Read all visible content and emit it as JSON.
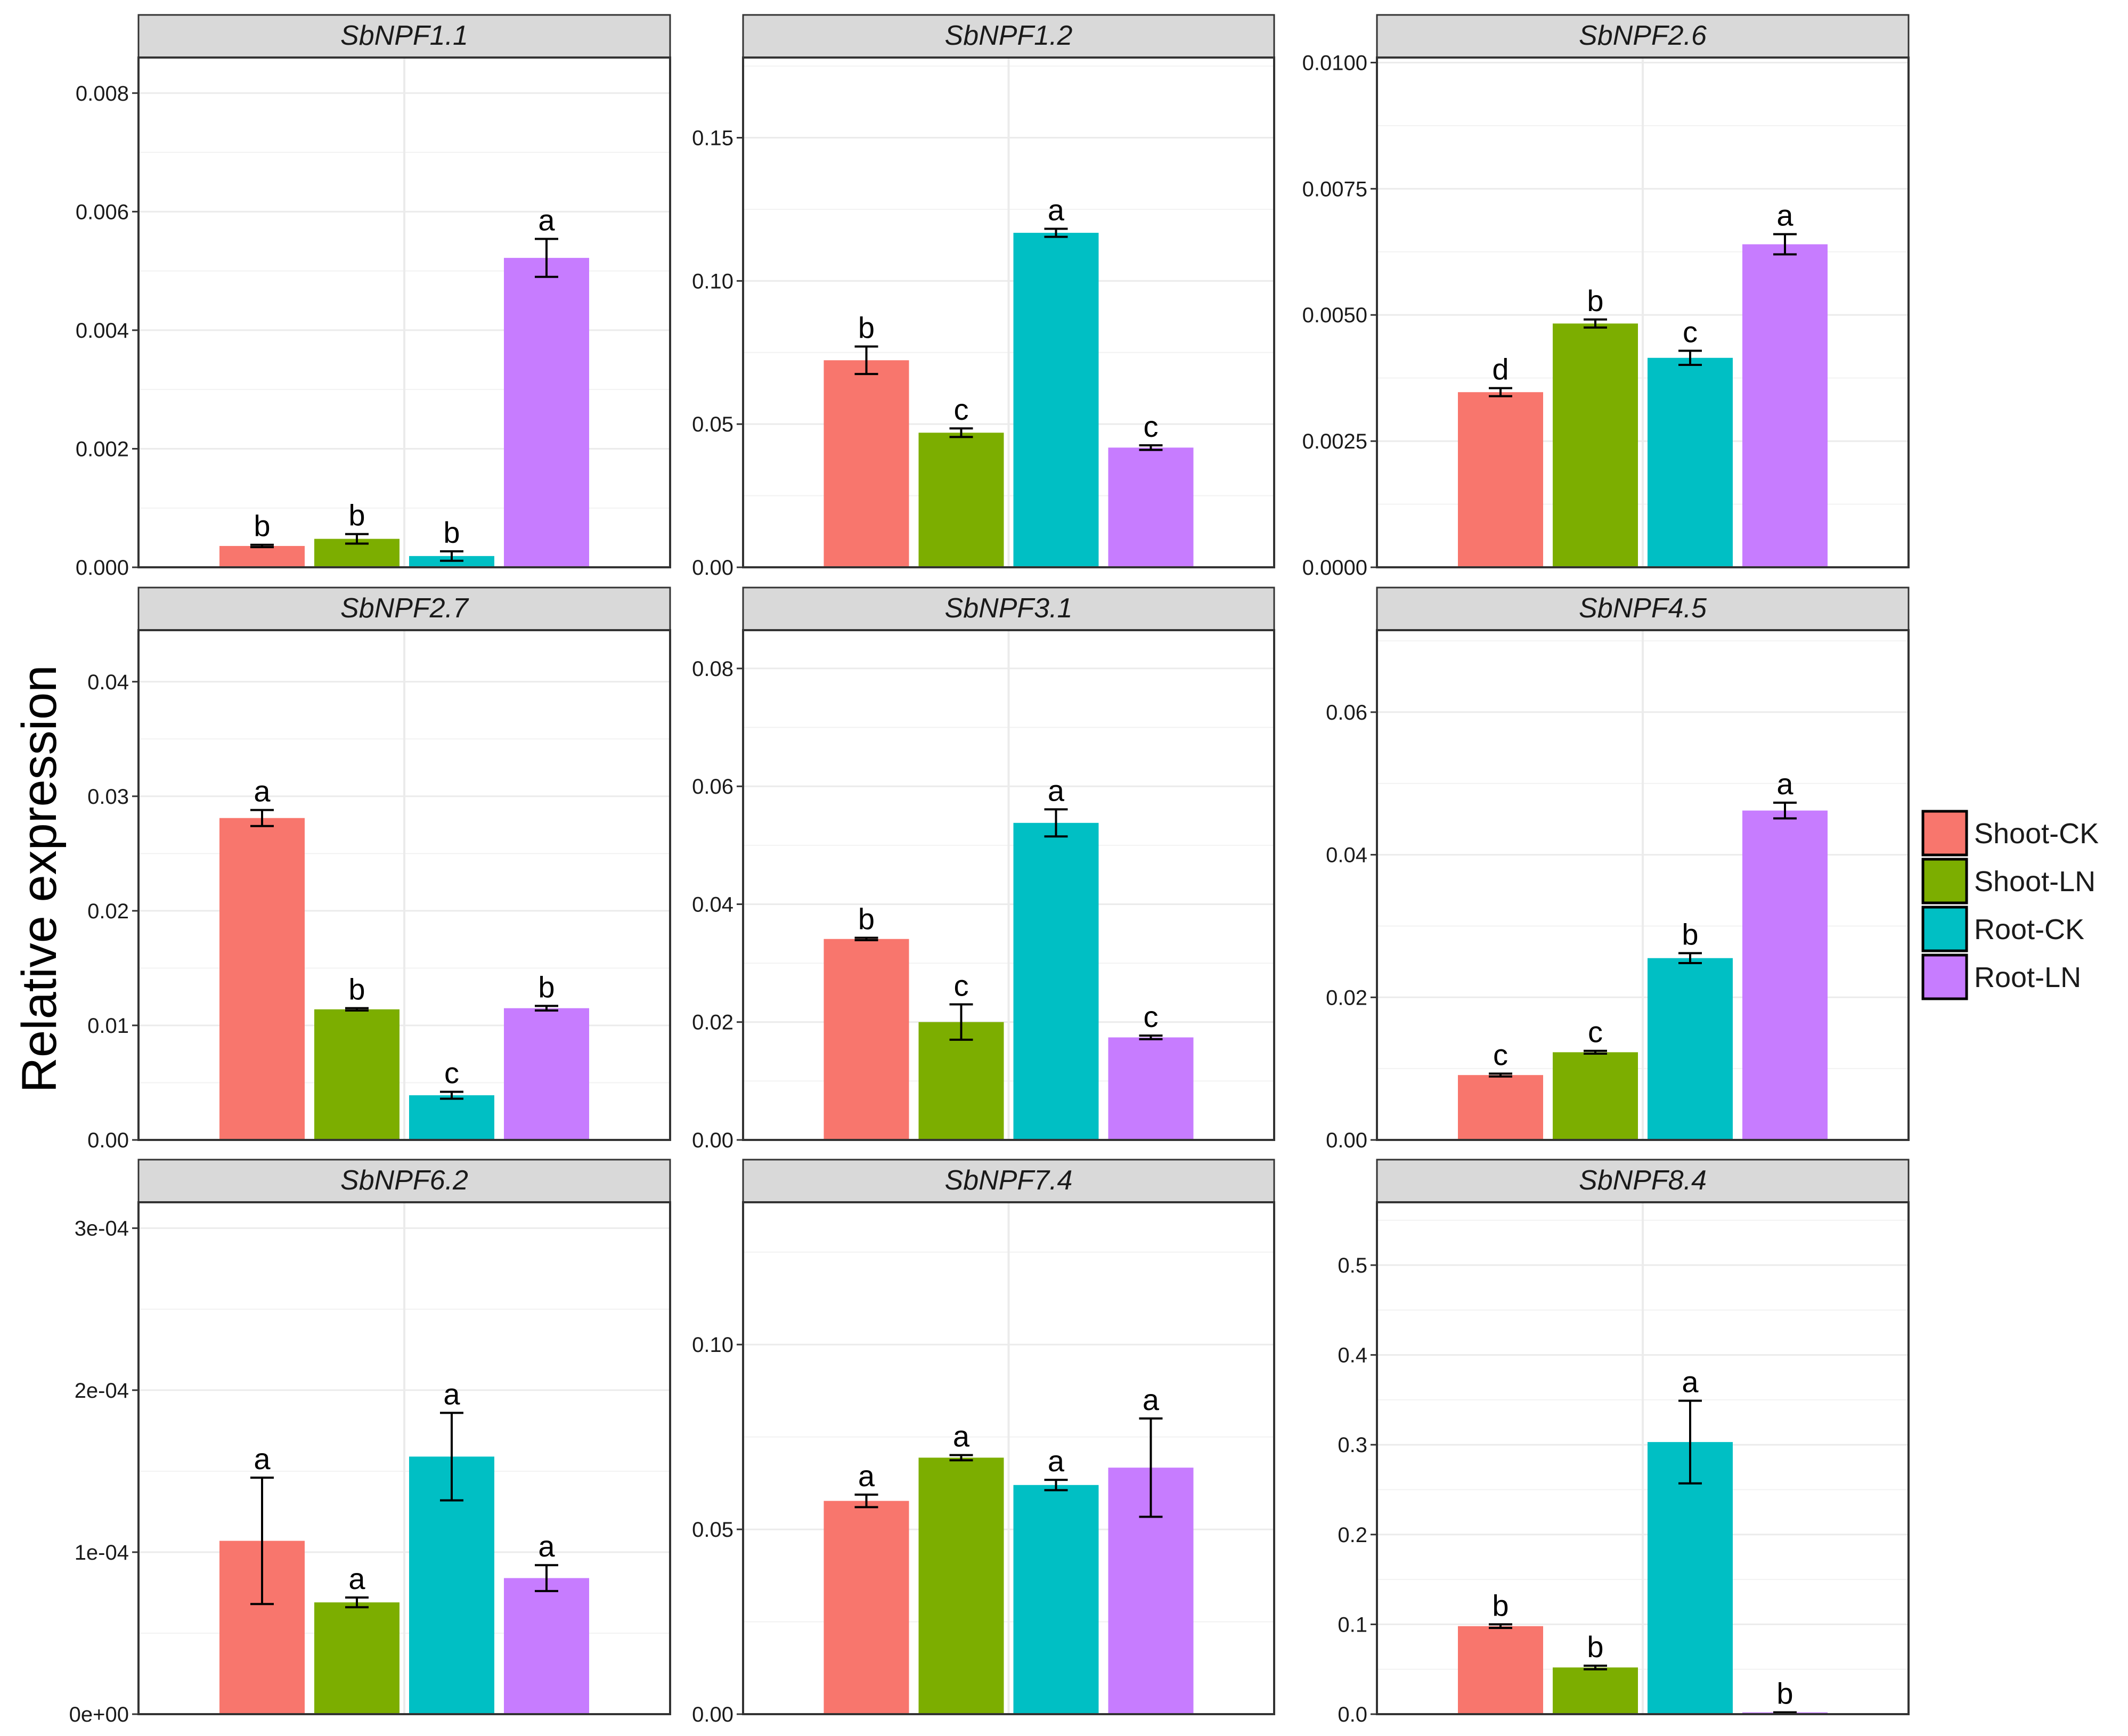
{
  "chart_data": {
    "type": "bar",
    "layout": "facet-grid 3x3",
    "ylabel": "Relative expression",
    "xlabel": "",
    "legend": {
      "position": "right",
      "entries": [
        {
          "name": "Shoot-CK",
          "color": "#F8766D"
        },
        {
          "name": "Shoot-LN",
          "color": "#7CAE00"
        },
        {
          "name": "Root-CK",
          "color": "#00BFC4"
        },
        {
          "name": "Root-LN",
          "color": "#C77CFF"
        }
      ]
    },
    "panels": [
      {
        "title": "SbNPF1.1",
        "ylim": [
          0,
          0.0086
        ],
        "yticks": [
          "0.000",
          "0.002",
          "0.004",
          "0.006",
          "0.008"
        ],
        "ytick_values": [
          0,
          0.002,
          0.004,
          0.006,
          0.008
        ],
        "values": [
          0.00036,
          0.00048,
          0.00019,
          0.00522
        ],
        "errors": [
          2e-05,
          8e-05,
          8e-05,
          0.00032
        ],
        "letters": [
          "b",
          "b",
          "b",
          "a"
        ]
      },
      {
        "title": "SbNPF1.2",
        "ylim": [
          0,
          0.178
        ],
        "yticks": [
          "0.00",
          "0.05",
          "0.10",
          "0.15"
        ],
        "ytick_values": [
          0,
          0.05,
          0.1,
          0.15
        ],
        "values": [
          0.0723,
          0.047,
          0.1168,
          0.0418
        ],
        "errors": [
          0.0048,
          0.0015,
          0.0014,
          0.0008
        ],
        "letters": [
          "b",
          "c",
          "a",
          "c"
        ]
      },
      {
        "title": "SbNPF2.6",
        "ylim": [
          0,
          0.0101
        ],
        "yticks": [
          "0.0000",
          "0.0025",
          "0.0050",
          "0.0075",
          "0.0100"
        ],
        "ytick_values": [
          0,
          0.0025,
          0.005,
          0.0075,
          0.01
        ],
        "values": [
          0.00347,
          0.00483,
          0.00415,
          0.0064
        ],
        "errors": [
          8e-05,
          8e-05,
          0.00014,
          0.0002
        ],
        "letters": [
          "d",
          "b",
          "c",
          "a"
        ]
      },
      {
        "title": "SbNPF2.7",
        "ylim": [
          0,
          0.0445
        ],
        "yticks": [
          "0.00",
          "0.01",
          "0.02",
          "0.03",
          "0.04"
        ],
        "ytick_values": [
          0,
          0.01,
          0.02,
          0.03,
          0.04
        ],
        "values": [
          0.0281,
          0.0114,
          0.0039,
          0.0115
        ],
        "errors": [
          0.0007,
          0.0001,
          0.0003,
          0.0002
        ],
        "letters": [
          "a",
          "b",
          "c",
          "b"
        ]
      },
      {
        "title": "SbNPF3.1",
        "ylim": [
          0,
          0.0865
        ],
        "yticks": [
          "0.00",
          "0.02",
          "0.04",
          "0.06",
          "0.08"
        ],
        "ytick_values": [
          0,
          0.02,
          0.04,
          0.06,
          0.08
        ],
        "values": [
          0.0341,
          0.02,
          0.0538,
          0.0174
        ],
        "errors": [
          0.0002,
          0.003,
          0.0023,
          0.0003
        ],
        "letters": [
          "b",
          "c",
          "a",
          "c"
        ]
      },
      {
        "title": "SbNPF4.5",
        "ylim": [
          0,
          0.0715
        ],
        "yticks": [
          "0.00",
          "0.02",
          "0.04",
          "0.06"
        ],
        "ytick_values": [
          0,
          0.02,
          0.04,
          0.06
        ],
        "values": [
          0.0091,
          0.0123,
          0.0255,
          0.0462
        ],
        "errors": [
          0.0002,
          0.0002,
          0.0007,
          0.0011
        ],
        "letters": [
          "c",
          "c",
          "b",
          "a"
        ]
      },
      {
        "title": "SbNPF6.2",
        "ylim": [
          0,
          0.000316
        ],
        "yticks": [
          "0e+00",
          "1e-04",
          "2e-04",
          "3e-04"
        ],
        "ytick_values": [
          0,
          0.0001,
          0.0002,
          0.0003
        ],
        "values": [
          0.000107,
          6.9e-05,
          0.000159,
          8.4e-05
        ],
        "errors": [
          3.9e-05,
          3e-06,
          2.7e-05,
          8e-06
        ],
        "letters": [
          "a",
          "a",
          "a",
          "a"
        ]
      },
      {
        "title": "SbNPF7.4",
        "ylim": [
          0,
          0.1385
        ],
        "yticks": [
          "0.00",
          "0.05",
          "0.10"
        ],
        "ytick_values": [
          0,
          0.05,
          0.1
        ],
        "values": [
          0.0577,
          0.0694,
          0.062,
          0.0667
        ],
        "errors": [
          0.0017,
          0.0007,
          0.0014,
          0.0133
        ],
        "letters": [
          "a",
          "a",
          "a",
          "a"
        ]
      },
      {
        "title": "SbNPF8.4",
        "ylim": [
          0,
          0.57
        ],
        "yticks": [
          "0.0",
          "0.1",
          "0.2",
          "0.3",
          "0.4",
          "0.5"
        ],
        "ytick_values": [
          0,
          0.1,
          0.2,
          0.3,
          0.4,
          0.5
        ],
        "values": [
          0.098,
          0.052,
          0.303,
          0.002
        ],
        "errors": [
          0.002,
          0.002,
          0.046,
          0.0
        ],
        "letters": [
          "b",
          "b",
          "a",
          "b"
        ]
      }
    ]
  }
}
